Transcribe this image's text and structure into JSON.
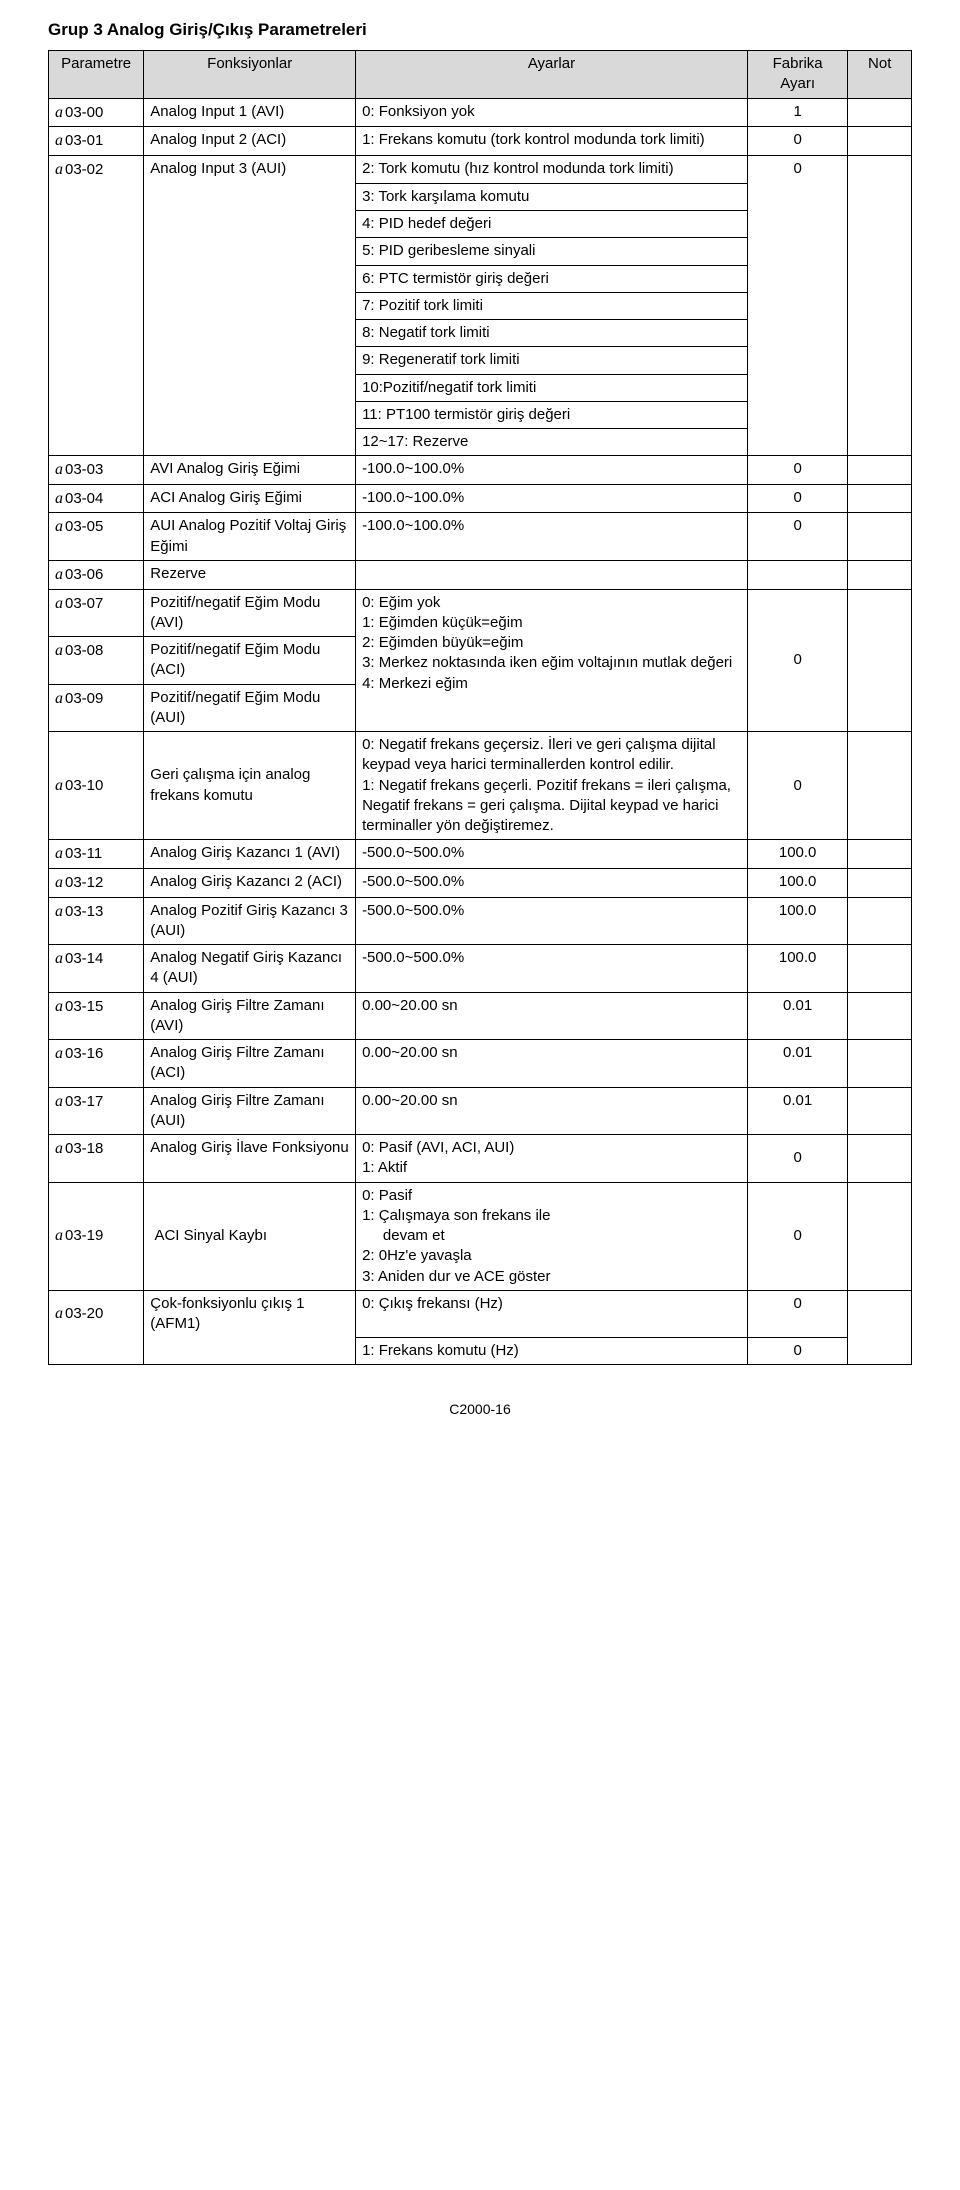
{
  "title": "Grup 3 Analog Giriş/Çıkış Parametreleri",
  "headers": {
    "param": "Parametre",
    "func": "Fonksiyonlar",
    "ayar": "Ayarlar",
    "fabr": "Fabrika Ayarı",
    "not": "Not"
  },
  "marker": "a",
  "rows": {
    "r0300": {
      "p": "03-00",
      "f": "Analog Input 1 (AVI)",
      "a": "0: Fonksiyon yok",
      "d": "1"
    },
    "r0301": {
      "p": "03-01",
      "f": "Analog Input 2 (ACI)",
      "a": "1: Frekans komutu (tork kontrol modunda tork limiti)",
      "d": "0"
    },
    "r0302": {
      "p": "03-02",
      "f": "Analog Input 3 (AUI)",
      "a": "2: Tork komutu (hız kontrol modunda tork limiti)",
      "d": "0"
    },
    "sub3": "3: Tork karşılama komutu",
    "sub4": "4: PID hedef değeri",
    "sub5": "5: PID geribesleme sinyali",
    "sub6": "6: PTC termistör giriş değeri",
    "sub7": "7: Pozitif tork limiti",
    "sub8": "8: Negatif tork limiti",
    "sub9": "9: Regeneratif tork limiti",
    "sub10": "10:Pozitif/negatif tork limiti",
    "sub11": "11: PT100 termistör giriş değeri",
    "sub12": "12~17: Rezerve",
    "r0303": {
      "p": "03-03",
      "f": "AVI Analog Giriş Eğimi",
      "a": "-100.0~100.0%",
      "d": "0"
    },
    "r0304": {
      "p": "03-04",
      "f": "ACI Analog Giriş Eğimi",
      "a": "-100.0~100.0%",
      "d": "0"
    },
    "r0305": {
      "p": "03-05",
      "f": "AUI Analog Pozitif Voltaj Giriş Eğimi",
      "a": "-100.0~100.0%",
      "d": "0"
    },
    "r0306": {
      "p": "03-06",
      "f": "Rezerve"
    },
    "r0307": {
      "p": "03-07",
      "f": "Pozitif/negatif Eğim Modu (AVI)"
    },
    "r0308": {
      "p": "03-08",
      "f": "Pozitif/negatif Eğim Modu (ACI)"
    },
    "r0309": {
      "p": "03-09",
      "f": "Pozitif/negatif Eğim Modu (AUI)"
    },
    "egimText": "0: Eğim yok\n1: Eğimden küçük=eğim\n2: Eğimden büyük=eğim\n3: Merkez noktasında iken eğim voltajının mutlak değeri\n4: Merkezi eğim",
    "egimDefault": "0",
    "r0310": {
      "p": "03-10",
      "f": "Geri çalışma için analog frekans komutu",
      "a": "0: Negatif frekans geçersiz. İleri ve geri çalışma dijital keypad veya harici terminallerden kontrol edilir.\n1: Negatif frekans geçerli. Pozitif frekans = ileri çalışma, Negatif frekans = geri çalışma. Dijital keypad ve harici terminaller yön değiştiremez.",
      "d": "0"
    },
    "r0311": {
      "p": "03-11",
      "f": "Analog Giriş Kazancı 1 (AVI)",
      "a": "-500.0~500.0%",
      "d": "100.0"
    },
    "r0312": {
      "p": "03-12",
      "f": "Analog Giriş Kazancı 2 (ACI)",
      "a": "-500.0~500.0%",
      "d": "100.0"
    },
    "r0313": {
      "p": "03-13",
      "f": "Analog Pozitif Giriş Kazancı 3 (AUI)",
      "a": "-500.0~500.0%",
      "d": "100.0"
    },
    "r0314": {
      "p": "03-14",
      "f": "Analog Negatif Giriş Kazancı 4 (AUI)",
      "a": "-500.0~500.0%",
      "d": "100.0"
    },
    "r0315": {
      "p": "03-15",
      "f": "Analog Giriş Filtre Zamanı (AVI)",
      "a": "0.00~20.00 sn",
      "d": "0.01"
    },
    "r0316": {
      "p": "03-16",
      "f": "Analog Giriş Filtre Zamanı (ACI)",
      "a": "0.00~20.00 sn",
      "d": "0.01"
    },
    "r0317": {
      "p": "03-17",
      "f": "Analog Giriş Filtre Zamanı (AUI)",
      "a": "0.00~20.00 sn",
      "d": "0.01"
    },
    "r0318": {
      "p": "03-18",
      "f": "Analog Giriş İlave Fonksiyonu",
      "a": "0: Pasif (AVI, ACI, AUI)\n1: Aktif",
      "d": "0"
    },
    "r0319": {
      "p": "03-19",
      "f": "ACI Sinyal Kaybı",
      "a": "0: Pasif\n1: Çalışmaya son frekans ile\n     devam et\n2: 0Hz'e yavaşla\n3: Aniden dur ve ACE göster",
      "d": "0"
    },
    "r0320": {
      "p": "03-20",
      "f": "Çok-fonksiyonlu çıkış 1 (AFM1)",
      "a": "0: Çıkış frekansı (Hz)",
      "d": "0"
    },
    "lastrow": "1: Frekans komutu (Hz)",
    "lastdef": "0"
  },
  "footer": "C2000-16",
  "colors": {
    "header_bg": "#d9d9d9",
    "border": "#000000",
    "bg": "#ffffff"
  }
}
